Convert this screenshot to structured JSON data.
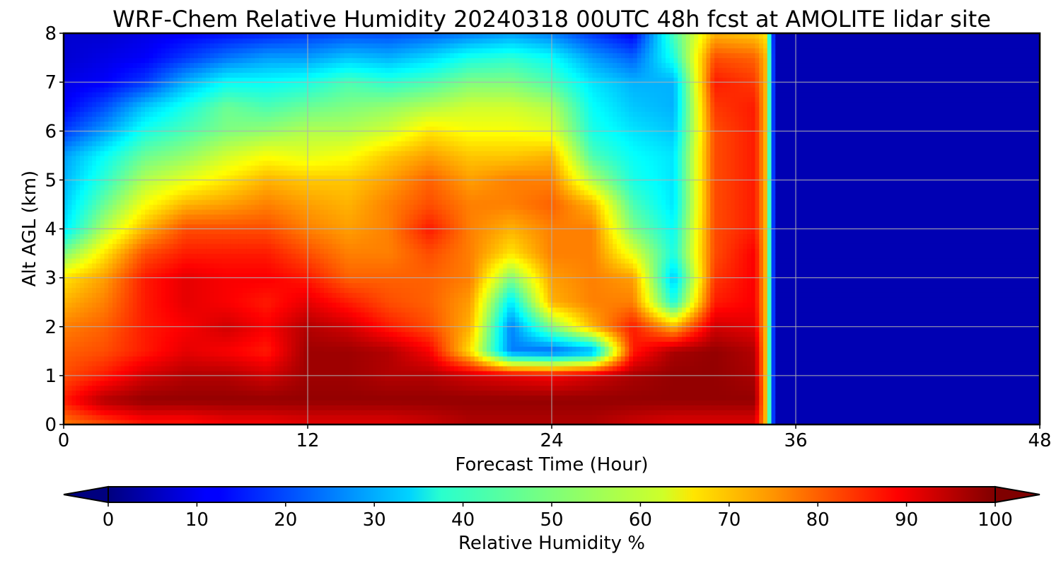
{
  "chart_data": {
    "type": "heatmap",
    "title": "WRF-Chem Relative Humidity 20240318 00UTC 48h fcst at AMOLITE lidar site",
    "xlabel": "Forecast Time (Hour)",
    "ylabel": "Alt AGL (km)",
    "xlim": [
      0,
      48
    ],
    "ylim": [
      0,
      8
    ],
    "x_ticks": [
      0,
      12,
      24,
      36,
      48
    ],
    "y_ticks": [
      0,
      1,
      2,
      3,
      4,
      5,
      6,
      7,
      8
    ],
    "grid": true,
    "colormap": "jet",
    "z_range": [
      0,
      100
    ],
    "colorbar": {
      "label": "Relative Humidity %",
      "ticks": [
        0,
        10,
        20,
        30,
        40,
        50,
        60,
        70,
        80,
        90,
        100
      ],
      "extend": "both",
      "orientation": "horizontal"
    },
    "x": [
      0,
      2,
      4,
      6,
      8,
      10,
      12,
      14,
      16,
      18,
      20,
      22,
      24,
      26,
      28,
      30,
      32,
      34,
      34.5,
      35,
      36,
      40,
      44,
      48
    ],
    "y": [
      0,
      0.5,
      1,
      1.5,
      2,
      2.5,
      3,
      3.5,
      4,
      4.5,
      5,
      5.5,
      6,
      6.5,
      7,
      7.5,
      8
    ],
    "z": [
      [
        75,
        80,
        85,
        85,
        88,
        88,
        90,
        90,
        90,
        92,
        95,
        95,
        95,
        95,
        92,
        90,
        90,
        90,
        70,
        5,
        5,
        5,
        5,
        5
      ],
      [
        85,
        95,
        98,
        98,
        98,
        98,
        98,
        98,
        98,
        98,
        98,
        98,
        98,
        98,
        98,
        98,
        98,
        98,
        70,
        5,
        5,
        5,
        5,
        5
      ],
      [
        80,
        85,
        92,
        95,
        95,
        92,
        97,
        97,
        95,
        95,
        92,
        90,
        88,
        92,
        96,
        98,
        98,
        96,
        70,
        5,
        5,
        5,
        5,
        5
      ],
      [
        78,
        80,
        85,
        90,
        88,
        85,
        97,
        97,
        95,
        88,
        65,
        25,
        22,
        28,
        85,
        96,
        98,
        95,
        70,
        5,
        5,
        5,
        5,
        5
      ],
      [
        75,
        78,
        85,
        88,
        92,
        88,
        95,
        92,
        85,
        80,
        70,
        25,
        50,
        70,
        85,
        70,
        92,
        90,
        70,
        5,
        5,
        5,
        5,
        5
      ],
      [
        70,
        75,
        85,
        90,
        88,
        85,
        90,
        85,
        80,
        78,
        72,
        35,
        70,
        75,
        75,
        40,
        85,
        88,
        70,
        5,
        5,
        5,
        5,
        5
      ],
      [
        65,
        72,
        85,
        90,
        88,
        88,
        85,
        78,
        78,
        78,
        75,
        50,
        72,
        75,
        72,
        32,
        82,
        88,
        70,
        5,
        5,
        5,
        5,
        5
      ],
      [
        50,
        65,
        80,
        85,
        85,
        85,
        80,
        75,
        75,
        80,
        75,
        65,
        75,
        75,
        60,
        40,
        80,
        88,
        70,
        5,
        5,
        5,
        5,
        5
      ],
      [
        35,
        55,
        70,
        80,
        80,
        80,
        75,
        72,
        75,
        85,
        75,
        70,
        75,
        75,
        50,
        38,
        80,
        85,
        70,
        5,
        5,
        5,
        5,
        5
      ],
      [
        32,
        48,
        62,
        70,
        72,
        75,
        72,
        70,
        75,
        80,
        75,
        75,
        78,
        70,
        45,
        35,
        80,
        85,
        70,
        5,
        5,
        5,
        5,
        5
      ],
      [
        30,
        42,
        55,
        60,
        65,
        70,
        68,
        68,
        72,
        78,
        72,
        75,
        75,
        55,
        40,
        35,
        80,
        85,
        70,
        5,
        5,
        5,
        5,
        5
      ],
      [
        28,
        38,
        48,
        52,
        58,
        62,
        60,
        62,
        68,
        72,
        68,
        68,
        70,
        45,
        38,
        35,
        80,
        85,
        70,
        5,
        5,
        5,
        5,
        5
      ],
      [
        18,
        28,
        40,
        45,
        50,
        52,
        55,
        55,
        58,
        65,
        62,
        62,
        60,
        40,
        35,
        32,
        80,
        85,
        70,
        5,
        5,
        5,
        5,
        5
      ],
      [
        12,
        20,
        32,
        40,
        48,
        45,
        48,
        50,
        52,
        55,
        58,
        58,
        55,
        38,
        32,
        30,
        82,
        85,
        70,
        5,
        5,
        5,
        5,
        5
      ],
      [
        10,
        12,
        18,
        30,
        38,
        38,
        40,
        45,
        42,
        45,
        50,
        50,
        45,
        35,
        30,
        30,
        85,
        82,
        70,
        5,
        5,
        5,
        5,
        5
      ],
      [
        8,
        10,
        12,
        18,
        24,
        28,
        28,
        32,
        30,
        34,
        40,
        42,
        38,
        28,
        22,
        40,
        80,
        78,
        70,
        5,
        5,
        5,
        5,
        5
      ],
      [
        8,
        8,
        10,
        12,
        14,
        16,
        18,
        20,
        20,
        22,
        25,
        28,
        25,
        18,
        12,
        45,
        70,
        68,
        65,
        5,
        5,
        5,
        5,
        5
      ]
    ]
  }
}
